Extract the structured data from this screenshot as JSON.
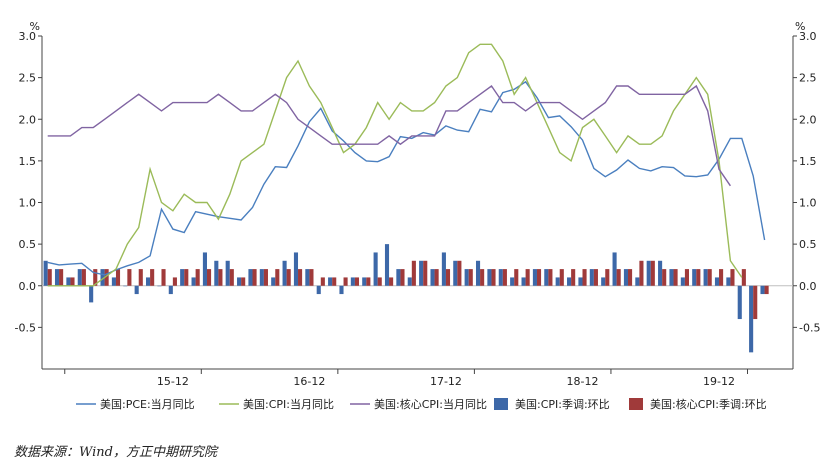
{
  "chart_data": {
    "type": "bar+line",
    "left_unit": "%",
    "right_unit": "%",
    "ylim": [
      -1.0,
      3.0
    ],
    "y_ticks": [
      "3.0",
      "2.5",
      "2.0",
      "1.5",
      "1.0",
      "0.5",
      "0.0",
      "-0.5"
    ],
    "y_tick_values": [
      3.0,
      2.5,
      2.0,
      1.5,
      1.0,
      0.5,
      0.0,
      -0.5
    ],
    "x_labels": [
      "15-12",
      "16-12",
      "17-12",
      "18-12",
      "19-12"
    ],
    "x_label_index": [
      11,
      23,
      35,
      47,
      59
    ],
    "n_months": 66,
    "grid": false,
    "legend_position": "bottom",
    "series": [
      {
        "name": "美国:PCE:当月同比",
        "type": "line",
        "color": "#4a7fbf",
        "values": [
          0.28,
          0.25,
          0.26,
          0.27,
          0.16,
          0.13,
          0.19,
          0.24,
          0.28,
          0.36,
          0.92,
          0.68,
          0.64,
          0.89,
          0.86,
          0.83,
          0.81,
          0.79,
          0.94,
          1.22,
          1.43,
          1.42,
          1.68,
          1.97,
          2.13,
          1.86,
          1.74,
          1.6,
          1.5,
          1.49,
          1.55,
          1.79,
          1.77,
          1.84,
          1.81,
          1.92,
          1.87,
          1.85,
          2.12,
          2.09,
          2.32,
          2.36,
          2.45,
          2.26,
          2.02,
          2.04,
          1.91,
          1.75,
          1.41,
          1.31,
          1.39,
          1.51,
          1.41,
          1.38,
          1.43,
          1.42,
          1.32,
          1.31,
          1.33,
          1.52,
          1.77,
          1.77,
          1.32,
          0.55,
          null,
          null
        ]
      },
      {
        "name": "美国:CPI:当月同比",
        "type": "line",
        "color": "#9bbb59",
        "values": [
          0.0,
          0.0,
          0.0,
          0.0,
          0.0,
          0.1,
          0.2,
          0.5,
          0.7,
          1.4,
          1.0,
          0.9,
          1.1,
          1.0,
          1.0,
          0.8,
          1.1,
          1.5,
          1.6,
          1.7,
          2.1,
          2.5,
          2.7,
          2.4,
          2.2,
          1.9,
          1.6,
          1.7,
          1.9,
          2.2,
          2.0,
          2.2,
          2.1,
          2.1,
          2.2,
          2.4,
          2.5,
          2.8,
          2.9,
          2.9,
          2.7,
          2.3,
          2.5,
          2.2,
          1.9,
          1.6,
          1.5,
          1.9,
          2.0,
          1.8,
          1.6,
          1.8,
          1.7,
          1.7,
          1.8,
          2.1,
          2.3,
          2.5,
          2.3,
          1.5,
          0.3,
          0.1,
          null,
          null,
          null,
          null
        ]
      },
      {
        "name": "美国:核心CPI:当月同比",
        "type": "line",
        "color": "#8064a2",
        "values": [
          1.8,
          1.8,
          1.8,
          1.9,
          1.9,
          2.0,
          2.1,
          2.2,
          2.3,
          2.2,
          2.1,
          2.2,
          2.2,
          2.2,
          2.2,
          2.3,
          2.2,
          2.1,
          2.1,
          2.2,
          2.3,
          2.2,
          2.0,
          1.9,
          1.8,
          1.7,
          1.7,
          1.7,
          1.7,
          1.7,
          1.8,
          1.7,
          1.8,
          1.8,
          1.8,
          2.1,
          2.1,
          2.2,
          2.3,
          2.4,
          2.2,
          2.2,
          2.1,
          2.2,
          2.2,
          2.2,
          2.1,
          2.0,
          2.1,
          2.2,
          2.4,
          2.4,
          2.3,
          2.3,
          2.3,
          2.3,
          2.3,
          2.4,
          2.1,
          1.4,
          1.2,
          null,
          null,
          null,
          null,
          null
        ]
      },
      {
        "name": "美国:CPI:季调:环比",
        "type": "bar",
        "color": "#3d68a8",
        "values": [
          0.3,
          0.2,
          0.1,
          0.2,
          -0.2,
          0.2,
          0.1,
          0.0,
          -0.1,
          0.1,
          0.0,
          -0.1,
          0.2,
          0.1,
          0.4,
          0.3,
          0.3,
          0.1,
          0.2,
          0.2,
          0.1,
          0.3,
          0.4,
          0.2,
          -0.1,
          0.1,
          -0.1,
          0.1,
          0.1,
          0.4,
          0.5,
          0.2,
          0.1,
          0.3,
          0.2,
          0.4,
          0.3,
          0.2,
          0.3,
          0.2,
          0.2,
          0.1,
          0.1,
          0.2,
          0.2,
          0.1,
          0.1,
          0.1,
          0.2,
          0.1,
          0.4,
          0.2,
          0.1,
          0.3,
          0.3,
          0.2,
          0.1,
          0.2,
          0.2,
          0.1,
          0.1,
          -0.4,
          -0.8,
          -0.1,
          null,
          null
        ]
      },
      {
        "name": "美国:核心CPI:季调:环比",
        "type": "bar",
        "color": "#a03a3a",
        "values": [
          0.2,
          0.2,
          0.1,
          0.2,
          0.2,
          0.2,
          0.2,
          0.2,
          0.2,
          0.2,
          0.2,
          0.1,
          0.2,
          0.2,
          0.2,
          0.2,
          0.2,
          0.1,
          0.2,
          0.2,
          0.2,
          0.2,
          0.2,
          0.2,
          0.1,
          0.1,
          0.1,
          0.1,
          0.1,
          0.1,
          0.1,
          0.2,
          0.3,
          0.3,
          0.2,
          0.2,
          0.3,
          0.2,
          0.2,
          0.2,
          0.2,
          0.2,
          0.2,
          0.2,
          0.2,
          0.2,
          0.2,
          0.2,
          0.2,
          0.2,
          0.2,
          0.2,
          0.3,
          0.3,
          0.2,
          0.2,
          0.2,
          0.2,
          0.2,
          0.2,
          0.2,
          0.2,
          -0.4,
          -0.1,
          null,
          null
        ]
      }
    ]
  },
  "source": "数据来源：Wind，方正中期研究院"
}
